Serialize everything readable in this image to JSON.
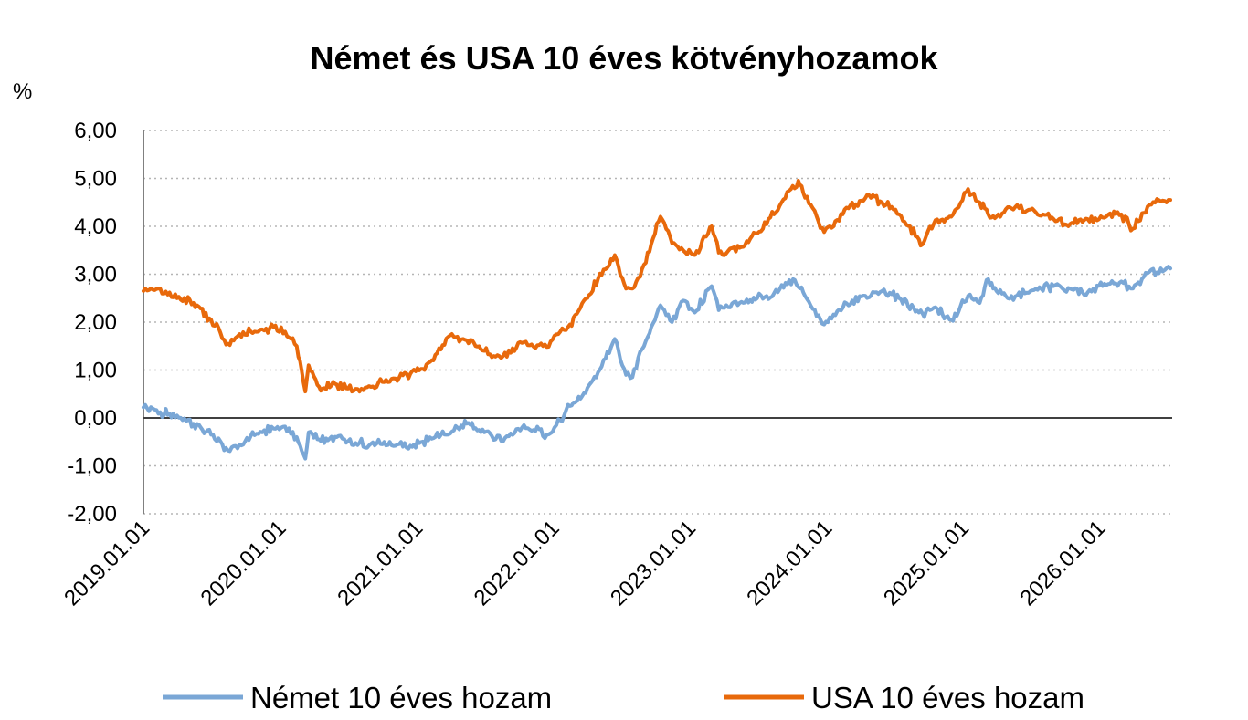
{
  "chart_data": {
    "type": "line",
    "title": "Német és USA 10 éves kötvényhozamok",
    "unit_label": "%",
    "xlabel": "",
    "ylabel": "",
    "ylim": [
      -2,
      6
    ],
    "y_ticks": [
      6,
      5,
      4,
      3,
      2,
      1,
      0,
      -1,
      -2
    ],
    "y_tick_labels": [
      "6,00",
      "5,00",
      "4,00",
      "3,00",
      "2,00",
      "1,00",
      "0,00",
      "-1,00",
      "-2,00"
    ],
    "x_range": [
      "2019-01-01",
      "2026-07-15"
    ],
    "x_ticks": [
      "2019-01-01",
      "2020-01-01",
      "2021-01-01",
      "2022-01-01",
      "2023-01-01",
      "2024-01-01",
      "2025-01-01",
      "2026-01-01"
    ],
    "x_tick_labels": [
      "2019.01.01",
      "2020.01.01",
      "2021.01.01",
      "2022.01.01",
      "2023.01.01",
      "2024.01.01",
      "2025.01.01",
      "2026.01.01"
    ],
    "grid": "horizontal dotted",
    "legend": "bottom",
    "series": [
      {
        "name": "Német 10 éves hozam",
        "color": "#7aa7d6",
        "x": [
          "2019-01-01",
          "2019-02-15",
          "2019-04-01",
          "2019-05-15",
          "2019-07-01",
          "2019-08-15",
          "2019-09-15",
          "2019-10-15",
          "2019-11-15",
          "2019-12-15",
          "2020-01-15",
          "2020-02-15",
          "2020-03-09",
          "2020-03-18",
          "2020-04-15",
          "2020-06-01",
          "2020-08-01",
          "2020-10-01",
          "2020-12-15",
          "2021-02-15",
          "2021-05-15",
          "2021-07-01",
          "2021-08-15",
          "2021-10-15",
          "2021-12-15",
          "2022-01-20",
          "2022-02-15",
          "2022-03-15",
          "2022-05-01",
          "2022-06-15",
          "2022-07-15",
          "2022-08-01",
          "2022-09-01",
          "2022-10-15",
          "2022-11-15",
          "2022-12-15",
          "2023-01-15",
          "2023-03-01",
          "2023-03-20",
          "2023-05-15",
          "2023-07-01",
          "2023-08-15",
          "2023-10-05",
          "2023-11-01",
          "2023-12-27",
          "2024-02-15",
          "2024-04-15",
          "2024-05-30",
          "2024-07-15",
          "2024-09-15",
          "2024-10-15",
          "2024-12-01",
          "2025-01-15",
          "2025-02-15",
          "2025-03-10",
          "2025-04-01",
          "2025-05-01",
          "2025-07-01",
          "2025-09-01",
          "2025-10-15",
          "2025-12-01",
          "2026-01-15",
          "2026-03-01",
          "2026-04-01",
          "2026-05-15",
          "2026-07-10"
        ],
        "y": [
          0.22,
          0.12,
          0.05,
          -0.12,
          -0.35,
          -0.68,
          -0.55,
          -0.38,
          -0.3,
          -0.22,
          -0.18,
          -0.4,
          -0.85,
          -0.3,
          -0.45,
          -0.4,
          -0.52,
          -0.55,
          -0.58,
          -0.42,
          -0.12,
          -0.3,
          -0.48,
          -0.15,
          -0.35,
          -0.05,
          0.25,
          0.4,
          0.95,
          1.65,
          0.9,
          0.85,
          1.5,
          2.35,
          2.0,
          2.45,
          2.2,
          2.75,
          2.25,
          2.4,
          2.5,
          2.6,
          2.9,
          2.62,
          1.95,
          2.3,
          2.55,
          2.65,
          2.5,
          2.18,
          2.3,
          2.05,
          2.55,
          2.4,
          2.9,
          2.65,
          2.5,
          2.65,
          2.75,
          2.7,
          2.62,
          2.8,
          2.85,
          2.7,
          3.05,
          3.12
        ]
      },
      {
        "name": "USA 10 éves hozam",
        "color": "#e8690b",
        "x": [
          "2019-01-01",
          "2019-02-15",
          "2019-04-01",
          "2019-05-15",
          "2019-07-01",
          "2019-08-15",
          "2019-09-15",
          "2019-10-15",
          "2019-11-15",
          "2019-12-15",
          "2020-01-15",
          "2020-02-15",
          "2020-03-09",
          "2020-03-18",
          "2020-04-15",
          "2020-06-01",
          "2020-08-01",
          "2020-10-01",
          "2020-12-15",
          "2021-02-15",
          "2021-03-31",
          "2021-05-15",
          "2021-07-01",
          "2021-08-15",
          "2021-10-15",
          "2021-12-15",
          "2022-01-20",
          "2022-02-15",
          "2022-03-15",
          "2022-05-01",
          "2022-06-15",
          "2022-07-15",
          "2022-08-01",
          "2022-09-01",
          "2022-10-15",
          "2022-11-15",
          "2022-12-15",
          "2023-01-15",
          "2023-03-01",
          "2023-03-20",
          "2023-05-15",
          "2023-07-01",
          "2023-08-15",
          "2023-10-19",
          "2023-11-01",
          "2023-12-27",
          "2024-02-15",
          "2024-04-25",
          "2024-05-30",
          "2024-07-15",
          "2024-09-15",
          "2024-10-15",
          "2024-12-01",
          "2025-01-15",
          "2025-02-15",
          "2025-03-10",
          "2025-04-01",
          "2025-05-01",
          "2025-07-01",
          "2025-09-01",
          "2025-10-15",
          "2025-12-01",
          "2026-01-15",
          "2026-03-01",
          "2026-04-01",
          "2026-05-15",
          "2026-07-10"
        ],
        "y": [
          2.65,
          2.7,
          2.5,
          2.4,
          2.05,
          1.55,
          1.75,
          1.8,
          1.85,
          1.9,
          1.8,
          1.5,
          0.55,
          1.1,
          0.65,
          0.7,
          0.55,
          0.75,
          0.92,
          1.2,
          1.72,
          1.62,
          1.4,
          1.25,
          1.58,
          1.48,
          1.8,
          1.95,
          2.3,
          2.9,
          3.4,
          2.7,
          2.7,
          3.2,
          4.2,
          3.65,
          3.5,
          3.4,
          4.0,
          3.45,
          3.55,
          3.85,
          4.25,
          4.95,
          4.7,
          3.88,
          4.25,
          4.65,
          4.5,
          4.25,
          3.62,
          4.05,
          4.2,
          4.78,
          4.5,
          4.25,
          4.2,
          4.4,
          4.35,
          4.15,
          4.05,
          4.15,
          4.18,
          4.25,
          3.95,
          4.45,
          4.55
        ]
      }
    ]
  }
}
